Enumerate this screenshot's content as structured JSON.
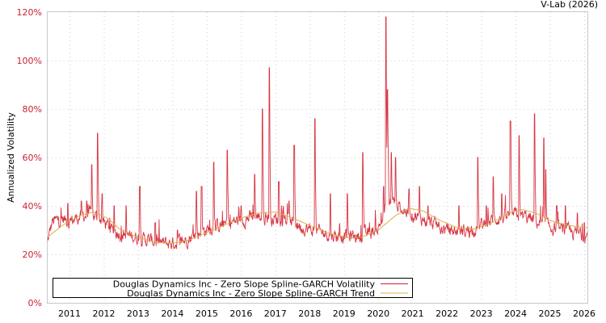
{
  "chart_data": {
    "type": "line",
    "title": "",
    "credit": "V-Lab (2026)",
    "xlabel": "",
    "ylabel": "Annualized Volatility",
    "ylim": [
      0,
      120
    ],
    "yticks": [
      "0%",
      "20%",
      "40%",
      "60%",
      "80%",
      "100%",
      "120%"
    ],
    "ytick_values": [
      0,
      20,
      40,
      60,
      80,
      100,
      120
    ],
    "xlim": [
      2010.35,
      2026.1
    ],
    "xticks": [
      "2011",
      "2012",
      "2013",
      "2014",
      "2015",
      "2016",
      "2017",
      "2018",
      "2019",
      "2020",
      "2021",
      "2022",
      "2023",
      "2024",
      "2025",
      "2026"
    ],
    "xtick_values": [
      2011,
      2012,
      2013,
      2014,
      2015,
      2016,
      2017,
      2018,
      2019,
      2020,
      2021,
      2022,
      2023,
      2024,
      2025,
      2026
    ],
    "grid": true,
    "legend_position": "lower-left",
    "series": [
      {
        "name": "Douglas Dynamics Inc - Zero Slope Spline-GARCH Volatility",
        "color": "#d42030",
        "baseline_points": [
          [
            2010.35,
            24
          ],
          [
            2010.5,
            33
          ],
          [
            2010.8,
            34
          ],
          [
            2011.0,
            33
          ],
          [
            2011.3,
            35
          ],
          [
            2011.6,
            36
          ],
          [
            2011.9,
            34
          ],
          [
            2012.2,
            30
          ],
          [
            2012.5,
            28
          ],
          [
            2012.8,
            27
          ],
          [
            2013.1,
            26
          ],
          [
            2013.4,
            25
          ],
          [
            2013.7,
            24
          ],
          [
            2014.0,
            24
          ],
          [
            2014.3,
            25
          ],
          [
            2014.6,
            27
          ],
          [
            2014.9,
            29
          ],
          [
            2015.2,
            31
          ],
          [
            2015.5,
            32
          ],
          [
            2015.8,
            33
          ],
          [
            2016.1,
            34
          ],
          [
            2016.4,
            35
          ],
          [
            2016.7,
            35
          ],
          [
            2017.0,
            34
          ],
          [
            2017.3,
            34
          ],
          [
            2017.6,
            32
          ],
          [
            2017.9,
            30
          ],
          [
            2018.2,
            29
          ],
          [
            2018.5,
            28
          ],
          [
            2018.8,
            27
          ],
          [
            2019.1,
            27
          ],
          [
            2019.4,
            27
          ],
          [
            2019.7,
            28
          ],
          [
            2020.0,
            30
          ],
          [
            2020.2,
            38
          ],
          [
            2020.4,
            42
          ],
          [
            2020.7,
            38
          ],
          [
            2021.0,
            36
          ],
          [
            2021.3,
            34
          ],
          [
            2021.6,
            32
          ],
          [
            2021.9,
            30
          ],
          [
            2022.2,
            29
          ],
          [
            2022.5,
            29
          ],
          [
            2022.8,
            30
          ],
          [
            2023.1,
            32
          ],
          [
            2023.4,
            34
          ],
          [
            2023.7,
            35
          ],
          [
            2024.0,
            36
          ],
          [
            2024.3,
            35
          ],
          [
            2024.6,
            33
          ],
          [
            2024.9,
            31
          ],
          [
            2025.2,
            30
          ],
          [
            2025.5,
            29
          ],
          [
            2025.8,
            28
          ],
          [
            2026.1,
            27
          ]
        ],
        "spikes": [
          [
            2010.95,
            41
          ],
          [
            2011.35,
            42
          ],
          [
            2011.5,
            42
          ],
          [
            2011.65,
            57
          ],
          [
            2011.82,
            70
          ],
          [
            2011.95,
            45
          ],
          [
            2012.3,
            40
          ],
          [
            2012.65,
            40
          ],
          [
            2013.05,
            48
          ],
          [
            2013.5,
            33
          ],
          [
            2014.15,
            30
          ],
          [
            2014.7,
            46
          ],
          [
            2014.85,
            48
          ],
          [
            2015.2,
            58
          ],
          [
            2015.6,
            63
          ],
          [
            2016.0,
            40
          ],
          [
            2016.4,
            53
          ],
          [
            2016.62,
            80
          ],
          [
            2016.82,
            97
          ],
          [
            2017.1,
            50
          ],
          [
            2017.4,
            42
          ],
          [
            2017.55,
            65
          ],
          [
            2018.15,
            76
          ],
          [
            2018.6,
            45
          ],
          [
            2019.1,
            45
          ],
          [
            2019.55,
            62
          ],
          [
            2020.15,
            48
          ],
          [
            2020.22,
            118
          ],
          [
            2020.27,
            88
          ],
          [
            2020.38,
            62
          ],
          [
            2020.5,
            60
          ],
          [
            2020.9,
            47
          ],
          [
            2021.2,
            48
          ],
          [
            2021.45,
            40
          ],
          [
            2022.35,
            40
          ],
          [
            2022.9,
            60
          ],
          [
            2023.15,
            40
          ],
          [
            2023.35,
            52
          ],
          [
            2023.6,
            45
          ],
          [
            2023.85,
            75
          ],
          [
            2024.1,
            69
          ],
          [
            2024.55,
            78
          ],
          [
            2024.82,
            68
          ],
          [
            2024.88,
            55
          ],
          [
            2025.2,
            40
          ],
          [
            2025.45,
            40
          ],
          [
            2025.8,
            37
          ],
          [
            2026.0,
            33
          ]
        ]
      },
      {
        "name": "Douglas Dynamics Inc - Zero Slope Spline-GARCH Trend",
        "color": "#d9b04a",
        "points": [
          [
            2010.35,
            27
          ],
          [
            2010.8,
            32
          ],
          [
            2011.3,
            36
          ],
          [
            2011.7,
            37.5
          ],
          [
            2012.1,
            35
          ],
          [
            2012.5,
            30
          ],
          [
            2013.0,
            27
          ],
          [
            2013.5,
            25
          ],
          [
            2014.0,
            24.5
          ],
          [
            2014.5,
            26
          ],
          [
            2015.0,
            29
          ],
          [
            2015.5,
            32
          ],
          [
            2016.0,
            35
          ],
          [
            2016.5,
            37
          ],
          [
            2017.0,
            37.5
          ],
          [
            2017.5,
            35
          ],
          [
            2018.0,
            32
          ],
          [
            2018.5,
            29
          ],
          [
            2019.0,
            27
          ],
          [
            2019.5,
            27
          ],
          [
            2020.0,
            30
          ],
          [
            2020.5,
            36
          ],
          [
            2020.9,
            39
          ],
          [
            2021.3,
            38
          ],
          [
            2021.8,
            34
          ],
          [
            2022.3,
            31
          ],
          [
            2022.8,
            30.5
          ],
          [
            2023.3,
            33
          ],
          [
            2023.8,
            37
          ],
          [
            2024.2,
            38.5
          ],
          [
            2024.6,
            37
          ],
          [
            2025.0,
            34
          ],
          [
            2025.5,
            32
          ],
          [
            2026.1,
            31
          ]
        ]
      }
    ]
  }
}
